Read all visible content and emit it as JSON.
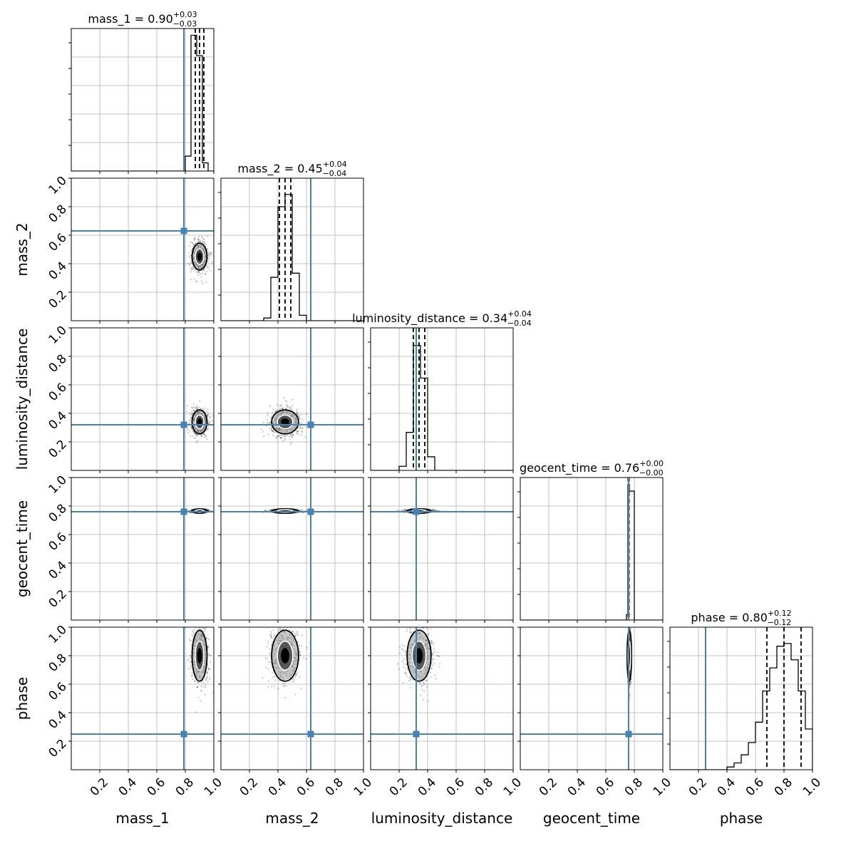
{
  "chart_data": {
    "type": "corner",
    "parameters": [
      "mass_1",
      "mass_2",
      "luminosity_distance",
      "geocent_time",
      "phase"
    ],
    "axis_range": [
      0,
      1
    ],
    "tick_values": [
      0.2,
      0.4,
      0.6,
      0.8,
      1.0
    ],
    "tick_labels": [
      "0.2",
      "0.4",
      "0.6",
      "0.8",
      "1.0"
    ],
    "grid": true,
    "colors": {
      "truth": "#4682b4",
      "hist": "#000000",
      "grid": "#b0b0b0"
    },
    "truths": [
      0.79,
      0.63,
      0.32,
      0.76,
      0.25
    ],
    "titles": [
      {
        "name": "mass_1",
        "median": "0.90",
        "plus": "+0.03",
        "minus": "−0.03"
      },
      {
        "name": "mass_2",
        "median": "0.45",
        "plus": "+0.04",
        "minus": "−0.04"
      },
      {
        "name": "luminosity_distance",
        "median": "0.34",
        "plus": "+0.04",
        "minus": "−0.04"
      },
      {
        "name": "geocent_time",
        "median": "0.76",
        "plus": "+0.00",
        "minus": "−0.00"
      },
      {
        "name": "phase",
        "median": "0.80",
        "plus": "+0.12",
        "minus": "−0.12"
      }
    ],
    "quantiles": [
      [
        0.87,
        0.9,
        0.93
      ],
      [
        0.41,
        0.45,
        0.49
      ],
      [
        0.3,
        0.34,
        0.38
      ],
      [
        0.757,
        0.76,
        0.763
      ],
      [
        0.68,
        0.8,
        0.92
      ]
    ],
    "histograms": [
      {
        "edges": [
          0.8,
          0.84,
          0.88,
          0.92,
          0.96,
          1.0
        ],
        "counts": [
          0.11,
          1.0,
          0.85,
          0.06,
          0.0
        ]
      },
      {
        "edges": [
          0.3,
          0.35,
          0.4,
          0.45,
          0.5,
          0.55,
          0.6,
          0.65
        ],
        "counts": [
          0.02,
          0.32,
          0.84,
          0.93,
          0.35,
          0.04,
          0.0
        ]
      },
      {
        "edges": [
          0.2,
          0.25,
          0.3,
          0.35,
          0.4,
          0.45,
          0.5
        ],
        "counts": [
          0.03,
          0.28,
          0.92,
          0.68,
          0.1,
          0.0
        ]
      },
      {
        "edges": [
          0.745,
          0.755,
          0.765,
          0.8
        ],
        "counts": [
          0.04,
          1.0,
          0.95
        ]
      },
      {
        "edges": [
          0.4,
          0.45,
          0.5,
          0.55,
          0.6,
          0.65,
          0.7,
          0.75,
          0.8,
          0.85,
          0.9,
          0.95,
          1.0
        ],
        "counts": [
          0.02,
          0.05,
          0.11,
          0.2,
          0.35,
          0.58,
          0.75,
          0.91,
          0.93,
          0.81,
          0.58,
          0.3
        ]
      }
    ],
    "posterior_center": [
      0.9,
      0.45,
      0.34,
      0.765,
      0.8
    ],
    "posterior_sigma": [
      0.025,
      0.045,
      0.04,
      0.004,
      0.085
    ]
  }
}
